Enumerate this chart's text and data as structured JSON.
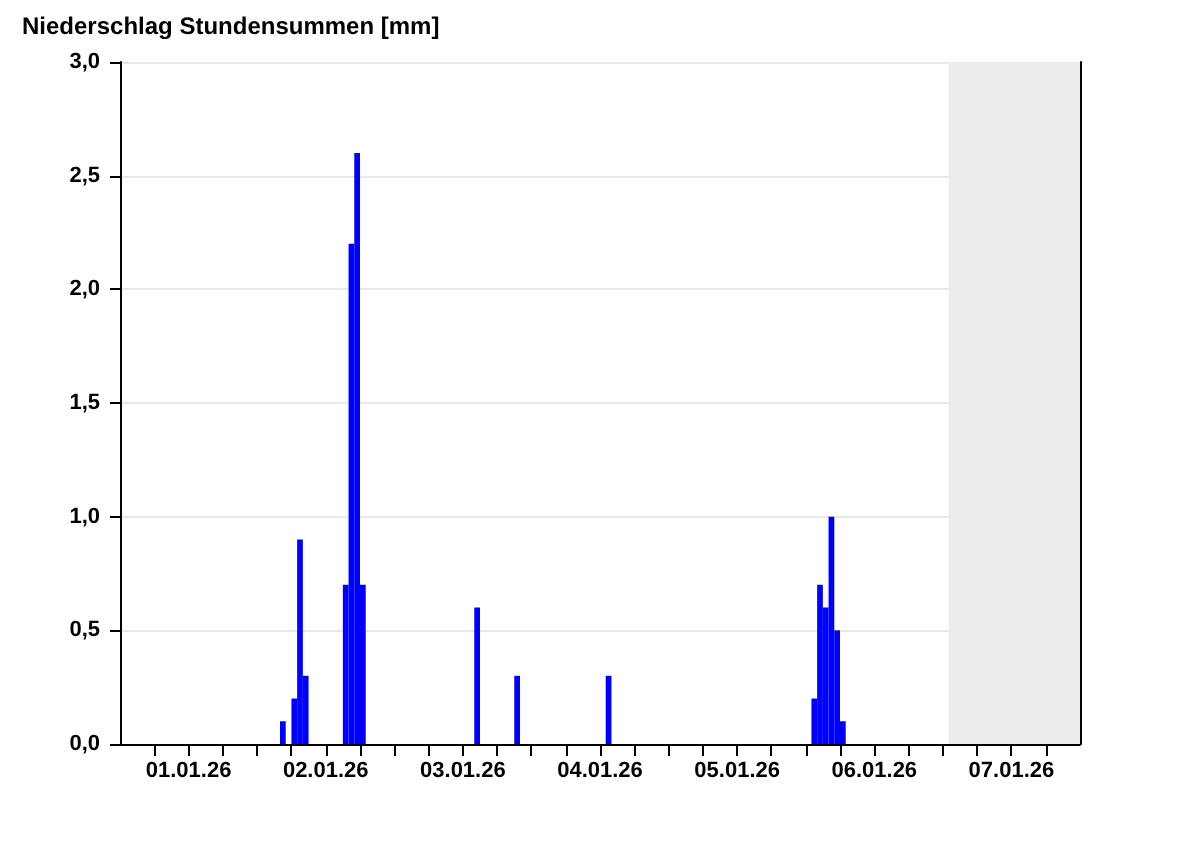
{
  "chart_data": {
    "type": "bar",
    "title": "Niederschlag Stundensummen [mm]",
    "x": [
      "--01-02T04:30",
      "--01-02T06:30",
      "--01-02T07:30",
      "--01-02T08:30",
      "--01-02T15:30",
      "--01-02T16:30",
      "--01-02T17:30",
      "--01-02T18:30",
      "--01-03T14:30",
      "--01-03T21:30",
      "--01-04T13:30",
      "--01-06T01:30",
      "--01-06T02:30",
      "--01-06T03:30",
      "--01-06T04:30",
      "--01-06T05:30",
      "--01-06T06:30"
    ],
    "values": [
      0.1,
      0.2,
      0.9,
      0.3,
      0.7,
      2.2,
      2.6,
      0.7,
      0.6,
      0.3,
      0.3,
      0.2,
      0.7,
      0.6,
      1.0,
      0.5,
      0.1
    ],
    "color": "#0000ff",
    "xlim": [
      "--01-01T00:00",
      "--01-08T00:00"
    ],
    "xticks": [
      {
        "value": "--01-01T06:00",
        "label": null
      },
      {
        "value": "--01-01T12:00",
        "label": "01.01.26"
      },
      {
        "value": "--01-01T18:00",
        "label": null
      },
      {
        "value": "--01-02T00:00",
        "label": null
      },
      {
        "value": "--01-02T06:00",
        "label": null
      },
      {
        "value": "--01-02T12:00",
        "label": "02.01.26"
      },
      {
        "value": "--01-02T18:00",
        "label": null
      },
      {
        "value": "--01-03T00:00",
        "label": null
      },
      {
        "value": "--01-03T06:00",
        "label": null
      },
      {
        "value": "--01-03T12:00",
        "label": "03.01.26"
      },
      {
        "value": "--01-03T18:00",
        "label": null
      },
      {
        "value": "--01-04T00:00",
        "label": null
      },
      {
        "value": "--01-04T06:00",
        "label": null
      },
      {
        "value": "--01-04T12:00",
        "label": "04.01.26"
      },
      {
        "value": "--01-04T18:00",
        "label": null
      },
      {
        "value": "--01-05T00:00",
        "label": null
      },
      {
        "value": "--01-05T06:00",
        "label": null
      },
      {
        "value": "--01-05T12:00",
        "label": "05.01.26"
      },
      {
        "value": "--01-05T18:00",
        "label": null
      },
      {
        "value": "--01-06T00:00",
        "label": null
      },
      {
        "value": "--01-06T06:00",
        "label": null
      },
      {
        "value": "--01-06T12:00",
        "label": "06.01.26"
      },
      {
        "value": "--01-06T18:00",
        "label": null
      },
      {
        "value": "--01-07T00:00",
        "label": null
      },
      {
        "value": "--01-07T06:00",
        "label": null
      },
      {
        "value": "--01-07T12:00",
        "label": "07.01.26"
      },
      {
        "value": "--01-07T18:00",
        "label": null
      }
    ],
    "ylim": [
      0,
      3
    ],
    "yticks": [
      {
        "value": 0,
        "label": "0,0"
      },
      {
        "value": 0.5,
        "label": "0,5"
      },
      {
        "value": 1,
        "label": "1,0"
      },
      {
        "value": 1.5,
        "label": "1,5"
      },
      {
        "value": 2,
        "label": "2,0"
      },
      {
        "value": 2.5,
        "label": "2,5"
      },
      {
        "value": 3,
        "label": "3,0"
      }
    ],
    "grid": "y",
    "bands": [
      {
        "axis": "x",
        "from": "--01-07T01:00",
        "to": "--01-08T00:00",
        "color": "#ececec"
      }
    ]
  }
}
